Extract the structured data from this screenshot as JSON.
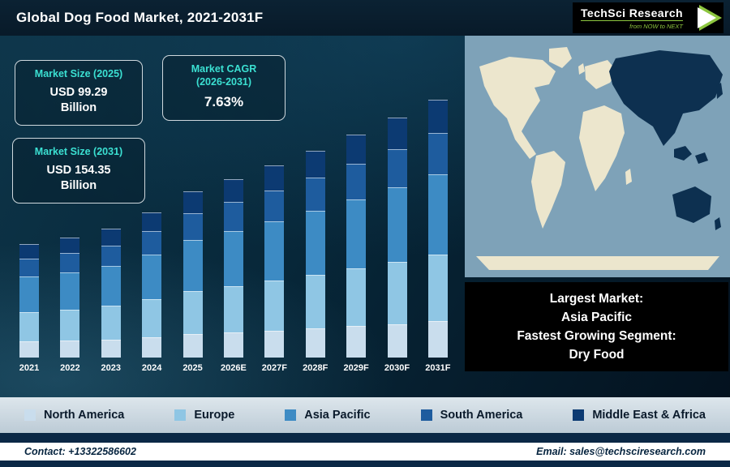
{
  "header": {
    "title": "Global Dog Food Market, 2021-2031F",
    "logo": {
      "brand": "TechSci Research",
      "tagline": "from NOW to NEXT"
    }
  },
  "info_boxes": [
    {
      "title": "Market Size (2025)",
      "line1": "USD 99.29",
      "line2": "Billion"
    },
    {
      "title_line1": "Market CAGR",
      "title_line2": "(2026-2031)",
      "value": "7.63%"
    },
    {
      "title": "Market Size (2031)",
      "line1": "USD 154.35",
      "line2": "Billion"
    }
  ],
  "map_note": {
    "lines": [
      "Largest Market:",
      "Asia Pacific",
      "Fastest Growing Segment:",
      "Dry Food"
    ]
  },
  "footer": {
    "contact": "Contact: +13322586602",
    "email": "Email: sales@techsciresearch.com"
  },
  "colors": {
    "accent_cyan": "#3be0d2",
    "map_ocean": "#7ea2b8",
    "map_land": "#ece6cd",
    "map_highlight": "#0d3050"
  },
  "chart_data": {
    "type": "bar",
    "stacked": true,
    "title": "Global Dog Food Market, 2021-2031F",
    "unit": "USD Billion",
    "categories": [
      "2021",
      "2022",
      "2023",
      "2024",
      "2025",
      "2026E",
      "2027F",
      "2028F",
      "2029F",
      "2030F",
      "2031F"
    ],
    "series": [
      {
        "name": "North America",
        "color": "#c9dded",
        "values": [
          9.5,
          10.1,
          10.8,
          12.2,
          13.9,
          15.0,
          16.1,
          17.3,
          18.7,
          20.1,
          21.6
        ]
      },
      {
        "name": "Europe",
        "color": "#8fc6e4",
        "values": [
          17.7,
          18.7,
          20.0,
          22.6,
          25.8,
          27.8,
          29.9,
          32.2,
          34.7,
          37.3,
          40.1
        ]
      },
      {
        "name": "Asia Pacific",
        "color": "#3d8bc4",
        "values": [
          21.1,
          22.3,
          23.9,
          27.0,
          30.8,
          33.1,
          35.7,
          38.4,
          41.3,
          44.5,
          47.9
        ]
      },
      {
        "name": "South America",
        "color": "#1e5c9e",
        "values": [
          10.9,
          11.5,
          12.3,
          13.9,
          15.9,
          17.1,
          18.4,
          19.8,
          21.3,
          22.9,
          24.7
        ]
      },
      {
        "name": "Middle East & Africa",
        "color": "#0c3a72",
        "values": [
          8.8,
          9.4,
          10.0,
          11.3,
          12.9,
          13.9,
          15.0,
          16.1,
          17.3,
          18.6,
          20.1
        ]
      }
    ],
    "totals": [
      68,
      72,
      77,
      87,
      99.29,
      106.87,
      115.02,
      123.8,
      133.25,
      143.42,
      154.35
    ],
    "ylim": [
      0,
      160
    ],
    "grid": false,
    "legend_position": "bottom",
    "annotations": [
      "Market Size (2025): USD 99.29 Billion",
      "Market CAGR (2026-2031): 7.63%",
      "Market Size (2031): USD 154.35 Billion"
    ]
  }
}
